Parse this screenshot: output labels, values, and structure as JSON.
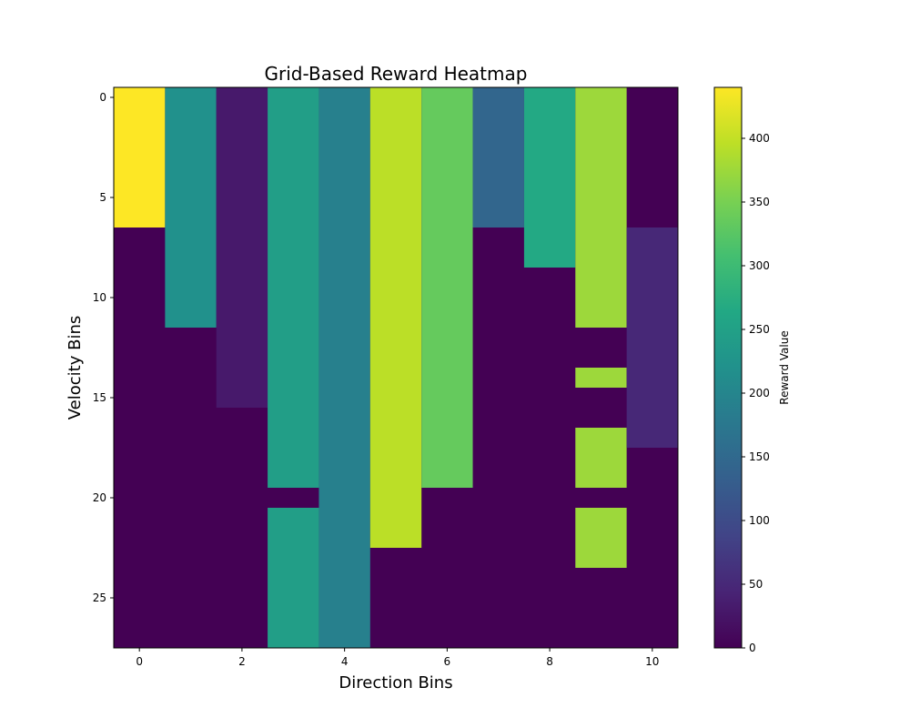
{
  "chart_data": {
    "type": "heatmap",
    "title": "Grid-Based Reward Heatmap",
    "xlabel": "Direction Bins",
    "ylabel": "Velocity Bins",
    "colorbar_label": "Reward Value",
    "colormap": "viridis",
    "vmin": 0,
    "vmax": 440,
    "xticks": [
      0,
      2,
      4,
      6,
      8,
      10
    ],
    "yticks": [
      0,
      5,
      10,
      15,
      20,
      25
    ],
    "colorbar_ticks": [
      0,
      50,
      100,
      150,
      200,
      250,
      300,
      350,
      400
    ],
    "n_cols": 11,
    "n_rows": 28,
    "columns": [
      {
        "direction": 0,
        "segments": [
          {
            "from": 0,
            "to": 6,
            "value": 440
          }
        ]
      },
      {
        "direction": 1,
        "segments": [
          {
            "from": 0,
            "to": 11,
            "value": 220
          }
        ]
      },
      {
        "direction": 2,
        "segments": [
          {
            "from": 0,
            "to": 15,
            "value": 30
          }
        ]
      },
      {
        "direction": 3,
        "segments": [
          {
            "from": 0,
            "to": 19,
            "value": 245
          },
          {
            "from": 21,
            "to": 27,
            "value": 245
          }
        ]
      },
      {
        "direction": 4,
        "segments": [
          {
            "from": 0,
            "to": 27,
            "value": 190
          }
        ]
      },
      {
        "direction": 5,
        "segments": [
          {
            "from": 0,
            "to": 22,
            "value": 395
          }
        ]
      },
      {
        "direction": 6,
        "segments": [
          {
            "from": 0,
            "to": 19,
            "value": 335
          }
        ]
      },
      {
        "direction": 7,
        "segments": [
          {
            "from": 0,
            "to": 6,
            "value": 145
          }
        ]
      },
      {
        "direction": 8,
        "segments": [
          {
            "from": 0,
            "to": 8,
            "value": 265
          }
        ]
      },
      {
        "direction": 9,
        "segments": [
          {
            "from": 0,
            "to": 11,
            "value": 375
          },
          {
            "from": 14,
            "to": 14,
            "value": 375
          },
          {
            "from": 17,
            "to": 19,
            "value": 375
          },
          {
            "from": 21,
            "to": 23,
            "value": 375
          }
        ]
      },
      {
        "direction": 10,
        "segments": [
          {
            "from": 7,
            "to": 17,
            "value": 50
          }
        ]
      }
    ],
    "background_value": 0
  }
}
